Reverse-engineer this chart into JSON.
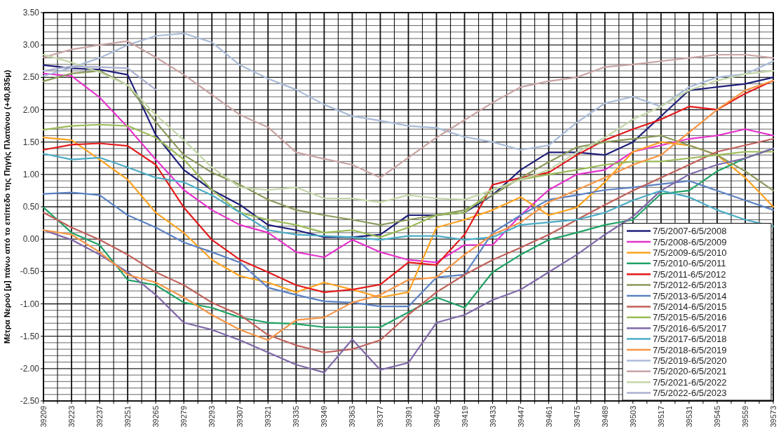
{
  "chart_data": {
    "type": "line",
    "ylabel": "Μέτρα Νερού [μ] πάνω από το επίπεδο της Πηγής Πλατάνου (+40,835μ)",
    "x": [
      39209,
      39223,
      39237,
      39251,
      39265,
      39279,
      39293,
      39307,
      39321,
      39335,
      39349,
      39363,
      39377,
      39391,
      39405,
      39419,
      39433,
      39447,
      39461,
      39475,
      39489,
      39503,
      39517,
      39531,
      39545,
      39559,
      39573
    ],
    "xlim": [
      39209,
      39573
    ],
    "xticks": [
      39209,
      {
        "value": 39216,
        "label": null
      },
      39223,
      {
        "value": 39230,
        "label": null
      },
      39237,
      {
        "value": 39244,
        "label": null
      },
      39251,
      {
        "value": 39258,
        "label": null
      },
      39265,
      {
        "value": 39272,
        "label": null
      },
      39279,
      {
        "value": 39286,
        "label": null
      },
      39293,
      {
        "value": 39300,
        "label": null
      },
      39307,
      {
        "value": 39314,
        "label": null
      },
      39321,
      {
        "value": 39328,
        "label": null
      },
      39335,
      {
        "value": 39342,
        "label": null
      },
      39349,
      {
        "value": 39356,
        "label": null
      },
      39363,
      {
        "value": 39370,
        "label": null
      },
      39377,
      {
        "value": 39384,
        "label": null
      },
      39391,
      {
        "value": 39398,
        "label": null
      },
      39405,
      {
        "value": 39412,
        "label": null
      },
      39419,
      {
        "value": 39426,
        "label": null
      },
      39433,
      {
        "value": 39440,
        "label": null
      },
      39447,
      {
        "value": 39454,
        "label": null
      },
      39461,
      {
        "value": 39468,
        "label": null
      },
      39475,
      {
        "value": 39482,
        "label": null
      },
      39489,
      {
        "value": 39496,
        "label": null
      },
      39503,
      {
        "value": 39510,
        "label": null
      },
      39517,
      {
        "value": 39524,
        "label": null
      },
      39531,
      {
        "value": 39538,
        "label": null
      },
      39545,
      {
        "value": 39552,
        "label": null
      },
      39559,
      {
        "value": 39566,
        "label": null
      },
      39573
    ],
    "ylim": [
      -2.5,
      3.5
    ],
    "yticks": [
      {
        "value": -2.5,
        "label": "-2.50"
      },
      {
        "value": -2.4,
        "label": null
      },
      {
        "value": -2.3,
        "label": null
      },
      {
        "value": -2.2,
        "label": null
      },
      {
        "value": -2.1,
        "label": null
      },
      {
        "value": -2,
        "label": "-2.00"
      },
      {
        "value": -1.9,
        "label": null
      },
      {
        "value": -1.8,
        "label": null
      },
      {
        "value": -1.7,
        "label": null
      },
      {
        "value": -1.6,
        "label": null
      },
      {
        "value": -1.5,
        "label": "-1.50"
      },
      {
        "value": -1.4,
        "label": null
      },
      {
        "value": -1.3,
        "label": null
      },
      {
        "value": -1.2,
        "label": null
      },
      {
        "value": -1.1,
        "label": null
      },
      {
        "value": -1,
        "label": "-1.00"
      },
      {
        "value": -0.9,
        "label": null
      },
      {
        "value": -0.8,
        "label": null
      },
      {
        "value": -0.7,
        "label": null
      },
      {
        "value": -0.6,
        "label": null
      },
      {
        "value": -0.5,
        "label": "-0.50"
      },
      {
        "value": -0.4,
        "label": null
      },
      {
        "value": -0.3,
        "label": null
      },
      {
        "value": -0.2,
        "label": null
      },
      {
        "value": -0.1,
        "label": null
      },
      {
        "value": 0,
        "label": "0.00"
      },
      {
        "value": 0.1,
        "label": null
      },
      {
        "value": 0.2,
        "label": null
      },
      {
        "value": 0.3,
        "label": null
      },
      {
        "value": 0.4,
        "label": null
      },
      {
        "value": 0.5,
        "label": "0.50"
      },
      {
        "value": 0.6,
        "label": null
      },
      {
        "value": 0.7,
        "label": null
      },
      {
        "value": 0.8,
        "label": null
      },
      {
        "value": 0.9,
        "label": null
      },
      {
        "value": 1,
        "label": "1.00"
      },
      {
        "value": 1.1,
        "label": null
      },
      {
        "value": 1.2,
        "label": null
      },
      {
        "value": 1.3,
        "label": null
      },
      {
        "value": 1.4,
        "label": null
      },
      {
        "value": 1.5,
        "label": "1.50"
      },
      {
        "value": 1.6,
        "label": null
      },
      {
        "value": 1.7,
        "label": null
      },
      {
        "value": 1.8,
        "label": null
      },
      {
        "value": 1.9,
        "label": null
      },
      {
        "value": 2,
        "label": "2.00"
      },
      {
        "value": 2.1,
        "label": null
      },
      {
        "value": 2.2,
        "label": null
      },
      {
        "value": 2.3,
        "label": null
      },
      {
        "value": 2.4,
        "label": null
      },
      {
        "value": 2.5,
        "label": "2.50"
      },
      {
        "value": 2.6,
        "label": null
      },
      {
        "value": 2.7,
        "label": null
      },
      {
        "value": 2.8,
        "label": null
      },
      {
        "value": 2.9,
        "label": null
      },
      {
        "value": 3,
        "label": "3.00"
      },
      {
        "value": 3.1,
        "label": null
      },
      {
        "value": 3.2,
        "label": null
      },
      {
        "value": 3.3,
        "label": null
      },
      {
        "value": 3.4,
        "label": null
      },
      {
        "value": 3.5,
        "label": "3.50"
      }
    ],
    "grid": true,
    "legend": "bottom right",
    "marker": "none",
    "line_style": "solid",
    "series": [
      {
        "name": "7/5/2007-6/5/2008",
        "color": "#1f1f7a",
        "values": [
          2.69,
          2.64,
          2.62,
          2.54,
          1.61,
          1.07,
          0.76,
          0.53,
          0.22,
          0.14,
          0.03,
          0.03,
          0.07,
          0.37,
          0.37,
          0.41,
          0.68,
          1.07,
          1.34,
          1.34,
          1.3,
          1.5,
          1.9,
          2.3,
          2.35,
          2.4,
          2.5
        ]
      },
      {
        "name": "7/5/2008-6/5/2009",
        "color": "#e633cc",
        "values": [
          2.56,
          2.52,
          2.19,
          1.73,
          1.23,
          0.76,
          0.45,
          0.22,
          0.1,
          -0.2,
          -0.28,
          -0.01,
          -0.2,
          -0.32,
          -0.36,
          -0.09,
          -0.09,
          0.37,
          0.76,
          1.0,
          1.07,
          1.35,
          1.45,
          1.55,
          1.6,
          1.7,
          1.6
        ]
      },
      {
        "name": "7/5/2009-6/5/2010",
        "color": "#ffa21f",
        "values": [
          1.57,
          1.53,
          1.23,
          0.92,
          0.41,
          0.1,
          -0.32,
          -0.57,
          -0.67,
          -0.82,
          -0.67,
          -0.78,
          -0.9,
          -0.82,
          0.18,
          0.3,
          0.45,
          0.65,
          0.37,
          0.49,
          0.88,
          1.35,
          1.5,
          1.45,
          1.3,
          0.95,
          0.5
        ]
      },
      {
        "name": "7/5/2010-6/5/2011",
        "color": "#21a366",
        "values": [
          0.49,
          0.1,
          -0.09,
          -0.63,
          -0.71,
          -0.98,
          -1.06,
          -1.21,
          -1.29,
          -1.31,
          -1.36,
          -1.36,
          -1.36,
          -1.13,
          -0.9,
          -1.06,
          -0.51,
          -0.24,
          -0.01,
          0.1,
          0.22,
          0.3,
          0.7,
          0.75,
          1.05,
          1.25,
          1.4
        ]
      },
      {
        "name": "7/5/2011-6/5/2012",
        "color": "#e31a1c",
        "values": [
          1.38,
          1.46,
          1.48,
          1.44,
          1.15,
          0.49,
          -0.01,
          -0.32,
          -0.51,
          -0.71,
          -0.82,
          -0.78,
          -0.7,
          -0.36,
          -0.4,
          0.07,
          0.84,
          0.95,
          1.03,
          1.3,
          1.53,
          1.7,
          1.85,
          2.05,
          2.0,
          2.25,
          2.45
        ]
      },
      {
        "name": "7/5/2012-6/5/2013",
        "color": "#8a9a5b",
        "values": [
          2.44,
          2.56,
          2.6,
          2.38,
          1.81,
          1.3,
          1.03,
          0.84,
          0.61,
          0.45,
          0.37,
          0.3,
          0.22,
          0.3,
          0.37,
          0.45,
          0.68,
          0.95,
          1.19,
          1.42,
          1.5,
          1.55,
          1.6,
          1.45,
          1.3,
          1.05,
          0.75
        ]
      },
      {
        "name": "7/5/2013-6/5/2014",
        "color": "#5b82c4",
        "values": [
          0.7,
          0.72,
          0.68,
          0.37,
          0.18,
          -0.05,
          -0.2,
          -0.36,
          -0.75,
          -0.86,
          -0.96,
          -0.98,
          -1.04,
          -1.04,
          -0.59,
          -0.55,
          0.1,
          0.37,
          0.61,
          0.68,
          0.76,
          0.8,
          0.85,
          0.9,
          0.75,
          0.6,
          0.45
        ]
      },
      {
        "name": "7/5/2014-6/5/2015",
        "color": "#c0605a",
        "values": [
          0.41,
          0.18,
          -0.01,
          -0.24,
          -0.51,
          -0.71,
          -0.98,
          -1.17,
          -1.48,
          -1.64,
          -1.75,
          -1.7,
          -1.56,
          -1.17,
          -0.82,
          -0.55,
          -0.32,
          -0.13,
          0.07,
          0.3,
          0.53,
          0.75,
          0.95,
          1.15,
          1.35,
          1.45,
          1.55
        ]
      },
      {
        "name": "7/5/2015-6/5/2016",
        "color": "#9bbb59",
        "values": [
          1.69,
          1.75,
          1.77,
          1.75,
          1.57,
          1.23,
          0.76,
          0.41,
          0.3,
          0.22,
          0.1,
          0.14,
          0.03,
          0.18,
          0.37,
          0.41,
          0.76,
          0.92,
          1.0,
          1.07,
          1.15,
          1.2,
          1.2,
          1.25,
          1.3,
          1.35,
          1.35
        ]
      },
      {
        "name": "7/5/2016-6/5/2017",
        "color": "#7f68a8",
        "values": [
          0.14,
          -0.01,
          -0.24,
          -0.51,
          -0.86,
          -1.29,
          -1.4,
          -1.56,
          -1.75,
          -1.94,
          -2.06,
          -1.55,
          -2.02,
          -1.91,
          -1.29,
          -1.17,
          -0.94,
          -0.78,
          -0.51,
          -0.24,
          0.07,
          0.35,
          0.75,
          1.0,
          1.15,
          1.25,
          1.4
        ]
      },
      {
        "name": "7/5/2017-6/5/2018",
        "color": "#4bacc6",
        "values": [
          1.32,
          1.23,
          1.26,
          1.11,
          0.95,
          0.88,
          0.68,
          0.41,
          0.14,
          0.07,
          0.05,
          0.03,
          -0.01,
          0.05,
          0.05,
          -0.01,
          0.03,
          0.22,
          0.26,
          0.3,
          0.41,
          0.6,
          0.75,
          0.65,
          0.45,
          0.3,
          0.2
        ]
      },
      {
        "name": "7/5/2018-6/5/2019",
        "color": "#f79646",
        "values": [
          0.14,
          0.07,
          -0.2,
          -0.55,
          -0.67,
          -0.9,
          -1.17,
          -1.4,
          -1.56,
          -1.25,
          -1.21,
          -0.98,
          -0.86,
          -0.63,
          -0.59,
          -0.24,
          0.07,
          0.26,
          0.57,
          0.76,
          0.95,
          1.15,
          1.3,
          1.65,
          2.0,
          2.3,
          2.45
        ]
      },
      {
        "name": "7/5/2019-6/5/2020",
        "color": "#a8bbd8",
        "values": [
          2.52,
          2.65,
          2.8,
          3.0,
          3.14,
          3.18,
          3.04,
          2.69,
          2.48,
          2.31,
          2.08,
          1.9,
          1.83,
          1.75,
          1.72,
          1.58,
          1.5,
          1.38,
          1.45,
          1.8,
          2.1,
          2.2,
          2.05,
          2.35,
          2.5,
          2.55,
          2.75
        ]
      },
      {
        "name": "7/5/2020-6/5/2021",
        "color": "#c9a3a3",
        "values": [
          2.81,
          2.93,
          3.0,
          3.06,
          2.81,
          2.54,
          2.23,
          1.92,
          1.73,
          1.34,
          1.24,
          1.15,
          0.95,
          1.26,
          1.57,
          1.84,
          2.11,
          2.35,
          2.44,
          2.5,
          2.66,
          2.7,
          2.75,
          2.8,
          2.85,
          2.85,
          2.8
        ]
      },
      {
        "name": "7/5/2021-6/5/2022",
        "color": "#c4d6a8",
        "values": [
          2.85,
          2.73,
          2.58,
          2.38,
          1.92,
          1.53,
          1.11,
          0.8,
          0.76,
          0.8,
          0.63,
          0.63,
          0.57,
          0.68,
          0.63,
          0.61,
          0.76,
          0.92,
          1.07,
          1.34,
          1.57,
          1.85,
          2.05,
          2.3,
          2.45,
          2.55,
          2.6
        ]
      },
      {
        "name": "7/5/2022-6/5/2023",
        "color": "#aab0d0",
        "values": [
          2.6,
          2.67,
          2.66,
          2.64,
          2.31,
          null,
          null,
          null,
          null,
          null,
          null,
          null,
          null,
          null,
          null,
          null,
          null,
          null,
          null,
          null,
          null,
          null,
          null,
          null,
          null,
          null,
          null
        ]
      }
    ]
  }
}
